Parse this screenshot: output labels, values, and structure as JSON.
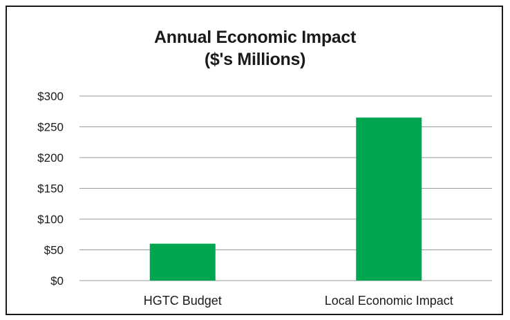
{
  "chart_data": {
    "type": "bar",
    "title_lines": [
      "Annual Economic Impact",
      "($'s Millions)"
    ],
    "categories": [
      "HGTC Budget",
      "Local Economic Impact"
    ],
    "values": [
      60,
      265
    ],
    "ylim": [
      0,
      300
    ],
    "y_ticks": [
      0,
      50,
      100,
      150,
      200,
      250,
      300
    ],
    "y_tick_labels": [
      "$0",
      "$50",
      "$100",
      "$150",
      "$200",
      "$250",
      "$300"
    ],
    "xlabel": "",
    "ylabel": "",
    "grid": true,
    "legend": "none",
    "bar_color": "#00a650",
    "grid_color": "#9a9a9a",
    "text_color": "#1a1a1a"
  }
}
